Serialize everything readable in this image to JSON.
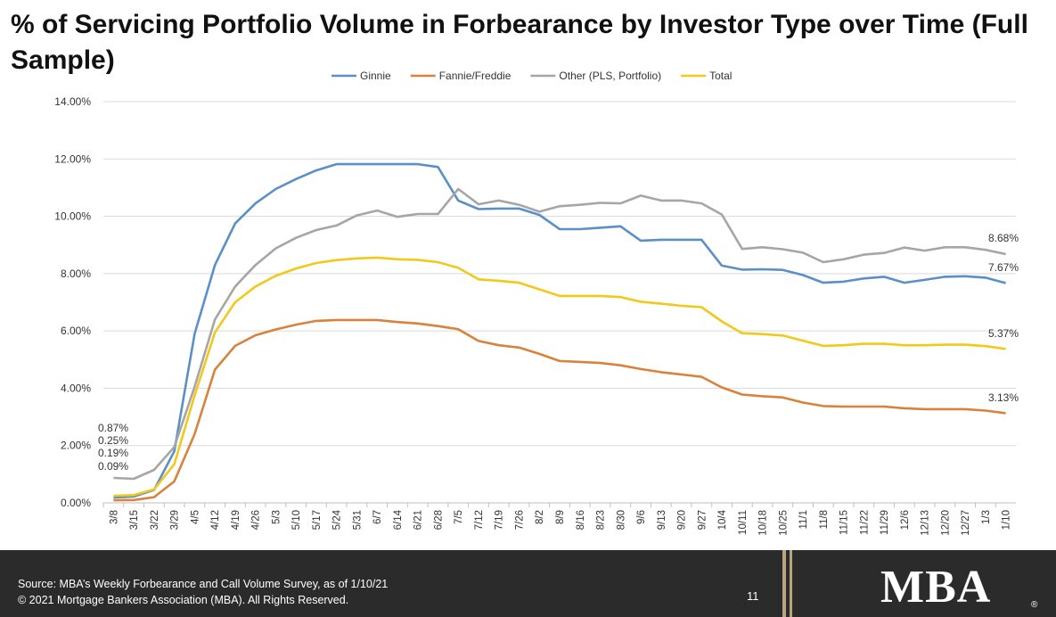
{
  "title": "% of Servicing Portfolio Volume in Forbearance by Investor Type over Time (Full Sample)",
  "chart_data": {
    "type": "line",
    "title": "% of Servicing Portfolio Volume in Forbearance by Investor Type over Time (Full Sample)",
    "xlabel": "",
    "ylabel": "",
    "ylim": [
      0,
      14
    ],
    "y_ticks": [
      "0.00%",
      "2.00%",
      "4.00%",
      "6.00%",
      "8.00%",
      "10.00%",
      "12.00%",
      "14.00%"
    ],
    "grid": true,
    "legend_position": "top",
    "categories": [
      "3/8",
      "3/15",
      "3/22",
      "3/29",
      "4/5",
      "4/12",
      "4/19",
      "4/26",
      "5/3",
      "5/10",
      "5/17",
      "5/24",
      "5/31",
      "6/7",
      "6/14",
      "6/21",
      "6/28",
      "7/5",
      "7/12",
      "7/19",
      "7/26",
      "8/2",
      "8/9",
      "8/16",
      "8/23",
      "8/30",
      "9/6",
      "9/13",
      "9/20",
      "9/27",
      "10/4",
      "10/11",
      "10/18",
      "10/25",
      "11/1",
      "11/8",
      "11/15",
      "11/22",
      "11/29",
      "12/6",
      "12/13",
      "12/20",
      "12/27",
      "1/3",
      "1/10"
    ],
    "series": [
      {
        "name": "Ginnie",
        "color": "#5b8fc7",
        "values": [
          0.19,
          0.22,
          0.45,
          1.8,
          5.9,
          8.3,
          9.75,
          10.45,
          10.95,
          11.3,
          11.6,
          11.82,
          11.82,
          11.82,
          11.82,
          11.82,
          11.72,
          10.55,
          10.25,
          10.27,
          10.27,
          10.05,
          9.55,
          9.55,
          9.6,
          9.65,
          9.15,
          9.18,
          9.18,
          9.18,
          8.28,
          8.14,
          8.15,
          8.13,
          7.95,
          7.68,
          7.72,
          7.83,
          7.89,
          7.68,
          7.78,
          7.89,
          7.91,
          7.86,
          7.67
        ]
      },
      {
        "name": "Fannie/Freddie",
        "color": "#d9823b",
        "values": [
          0.09,
          0.1,
          0.2,
          0.75,
          2.4,
          4.65,
          5.48,
          5.85,
          6.05,
          6.22,
          6.35,
          6.38,
          6.38,
          6.38,
          6.31,
          6.26,
          6.17,
          6.06,
          5.65,
          5.5,
          5.42,
          5.2,
          4.95,
          4.92,
          4.88,
          4.8,
          4.67,
          4.56,
          4.48,
          4.4,
          4.03,
          3.78,
          3.72,
          3.68,
          3.5,
          3.38,
          3.36,
          3.36,
          3.36,
          3.3,
          3.27,
          3.27,
          3.27,
          3.22,
          3.13
        ]
      },
      {
        "name": "Other (PLS, Portfolio)",
        "color": "#a6a6a6",
        "values": [
          0.87,
          0.84,
          1.15,
          1.95,
          4.05,
          6.4,
          7.55,
          8.3,
          8.88,
          9.25,
          9.52,
          9.68,
          10.03,
          10.2,
          9.98,
          10.08,
          10.08,
          10.95,
          10.42,
          10.55,
          10.4,
          10.16,
          10.35,
          10.4,
          10.47,
          10.45,
          10.72,
          10.55,
          10.55,
          10.45,
          10.06,
          8.86,
          8.92,
          8.85,
          8.73,
          8.4,
          8.5,
          8.66,
          8.72,
          8.91,
          8.8,
          8.92,
          8.92,
          8.83,
          8.68
        ]
      },
      {
        "name": "Total",
        "color": "#f2c91a",
        "values": [
          0.25,
          0.27,
          0.47,
          1.35,
          3.75,
          5.95,
          7.0,
          7.55,
          7.92,
          8.18,
          8.37,
          8.47,
          8.53,
          8.56,
          8.5,
          8.48,
          8.4,
          8.2,
          7.8,
          7.75,
          7.68,
          7.45,
          7.22,
          7.22,
          7.22,
          7.18,
          7.02,
          6.95,
          6.88,
          6.83,
          6.33,
          5.92,
          5.89,
          5.84,
          5.66,
          5.48,
          5.5,
          5.55,
          5.55,
          5.5,
          5.5,
          5.52,
          5.52,
          5.47,
          5.37
        ]
      }
    ],
    "annotations_start": [
      "0.87%",
      "0.25%",
      "0.19%",
      "0.09%"
    ],
    "annotations_end": [
      "8.68%",
      "7.67%",
      "5.37%",
      "3.13%"
    ]
  },
  "footer": {
    "source": "Source: MBA’s Weekly Forbearance and Call Volume Survey, as of 1/10/21",
    "copyright": "© 2021 Mortgage Bankers Association (MBA). All Rights Reserved.",
    "page_number": "11",
    "logo": "MBA",
    "registered": "®"
  }
}
